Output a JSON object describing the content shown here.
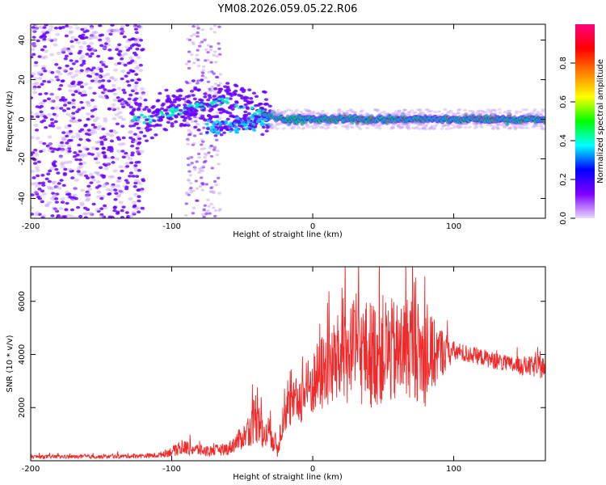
{
  "title": "YM08.2026.059.05.22.R06",
  "colors": {
    "snr_line": "#f02a2a",
    "axis": "#000000",
    "scatter_low": "#c9a8f5",
    "scatter_mid": "#6a00ff",
    "line_core": "#ff3b1f",
    "line_glow": "#00e000"
  },
  "chart_data": [
    {
      "type": "heatmap",
      "name": "spectrogram",
      "xlabel": "Height of straight line (km)",
      "ylabel": "Frequency (Hz)",
      "xlim": [
        -200,
        165
      ],
      "ylim": [
        -50,
        48
      ],
      "xticks": [
        -200,
        -100,
        0,
        100
      ],
      "yticks": [
        -40,
        -20,
        0,
        20,
        40
      ],
      "ridge_frequency_hz": [
        {
          "x": -110,
          "y": 3
        },
        {
          "x": -90,
          "y": 5
        },
        {
          "x": -70,
          "y": 8
        },
        {
          "x": -55,
          "y": 9
        },
        {
          "x": -45,
          "y": 5
        },
        {
          "x": -35,
          "y": 3
        },
        {
          "x": -20,
          "y": 0
        },
        {
          "x": 0,
          "y": 0
        },
        {
          "x": 50,
          "y": 0
        },
        {
          "x": 100,
          "y": 0
        },
        {
          "x": 165,
          "y": 0
        }
      ],
      "colorbar": {
        "label": "Normalized spectral amplitude",
        "range": [
          0,
          1
        ],
        "ticks": [
          0.0,
          0.2,
          0.4,
          0.6,
          0.8
        ],
        "tick_labels": [
          "0.0",
          "0.2",
          "0.4",
          "0.6",
          "0.8"
        ],
        "stops": [
          "#e8d8ff",
          "#7f00ff",
          "#0000ff",
          "#00ffff",
          "#00ff00",
          "#ffff00",
          "#ff8000",
          "#ff0000",
          "#ff0080"
        ]
      }
    },
    {
      "type": "line",
      "name": "snr",
      "xlabel": "Height of straight line (km)",
      "ylabel": "SNR (10 * v/v)",
      "xlim": [
        -200,
        165
      ],
      "ylim": [
        0,
        7300
      ],
      "xticks": [
        -200,
        -100,
        0,
        100
      ],
      "yticks": [
        2000,
        4000,
        6000
      ],
      "envelope": {
        "x": [
          -200,
          -150,
          -110,
          -90,
          -75,
          -60,
          -45,
          -38,
          -35,
          -30,
          -25,
          -20,
          -10,
          0,
          10,
          20,
          30,
          40,
          50,
          60,
          70,
          80,
          90,
          100,
          120,
          140,
          165
        ],
        "mean": [
          150,
          150,
          200,
          500,
          350,
          450,
          1100,
          2000,
          800,
          1200,
          400,
          1800,
          2300,
          2900,
          3500,
          3800,
          4100,
          4000,
          4200,
          4000,
          4400,
          3800,
          4100,
          4100,
          3900,
          3600,
          3500
        ],
        "spread": [
          90,
          90,
          120,
          350,
          250,
          300,
          700,
          1700,
          600,
          900,
          400,
          900,
          1200,
          1600,
          2000,
          2300,
          2500,
          2600,
          2600,
          2500,
          2500,
          2300,
          1300,
          500,
          400,
          400,
          550
        ]
      }
    }
  ]
}
